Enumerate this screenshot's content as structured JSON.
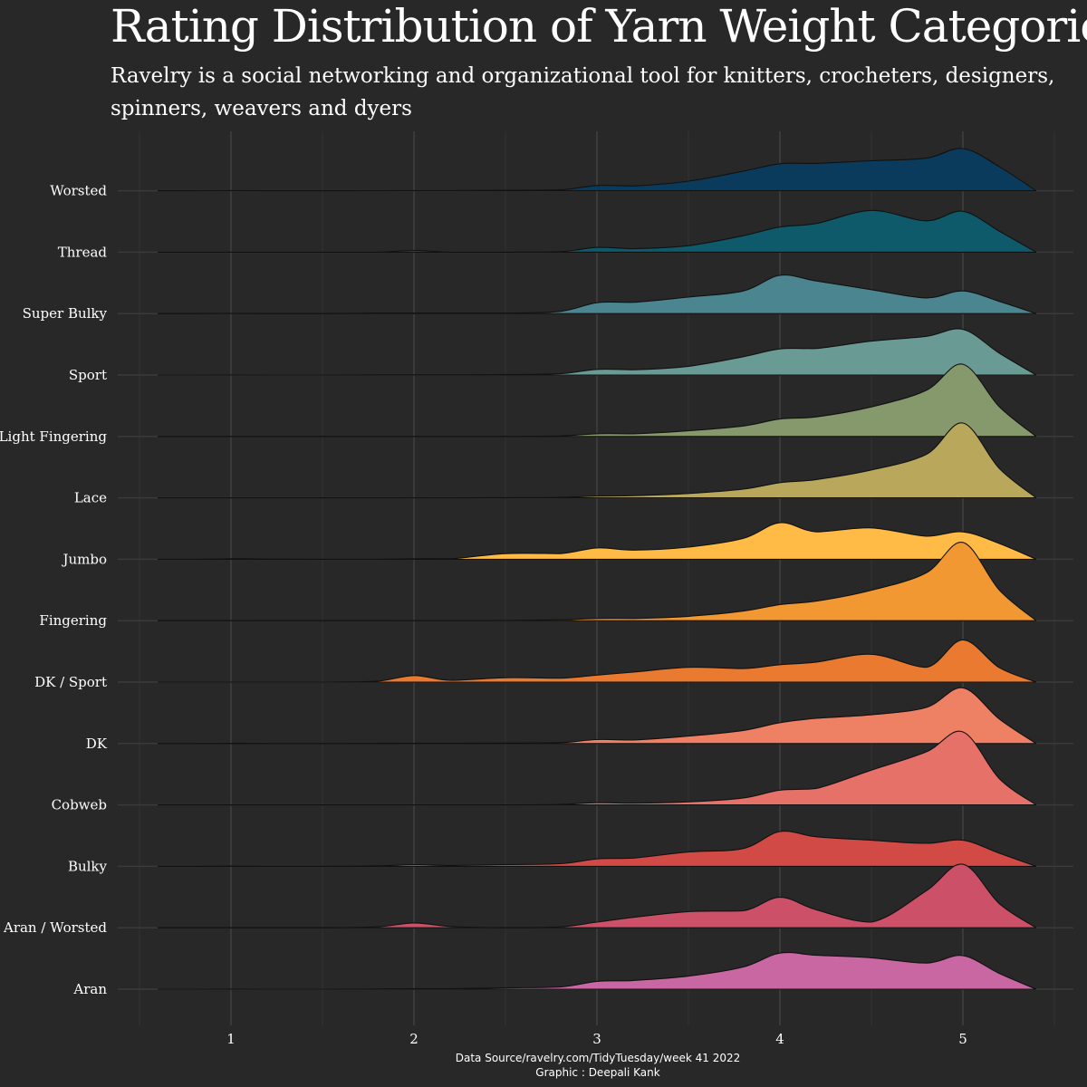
{
  "title": "Rating Distribution of Yarn Weight Categories",
  "subtitle": "Ravelry is a social networking and organizational tool for knitters, crocheters, designers,\n spinners, weavers and dyers",
  "caption": {
    "source": "Data Source/ravelry.com/TidyTuesday/week 41 2022",
    "credit": "Graphic : Deepali Kank"
  },
  "chart_data": {
    "type": "area",
    "subtype": "ridgeline",
    "x_ticks": [
      1,
      2,
      3,
      4,
      5
    ],
    "xlim": [
      0.5,
      5.5
    ],
    "grid": true,
    "density_x": [
      0.6,
      0.8,
      1.0,
      1.2,
      1.5,
      1.8,
      2.0,
      2.2,
      2.5,
      2.8,
      3.0,
      3.2,
      3.5,
      3.8,
      4.0,
      4.2,
      4.5,
      4.8,
      5.0,
      5.2,
      5.4
    ],
    "series": [
      {
        "name": "Worsted",
        "color": "#0b3b5c",
        "values": [
          0,
          0,
          0.004,
          0,
          0,
          0.002,
          0.004,
          0.005,
          0.01,
          0.02,
          0.12,
          0.11,
          0.22,
          0.45,
          0.62,
          0.63,
          0.69,
          0.75,
          0.97,
          0.55,
          0
        ]
      },
      {
        "name": "Thread",
        "color": "#0e5a6a",
        "values": [
          0,
          0,
          0,
          0,
          0,
          0,
          0.04,
          0,
          0,
          0.01,
          0.11,
          0.08,
          0.15,
          0.38,
          0.58,
          0.66,
          0.96,
          0.72,
          0.94,
          0.48,
          0
        ]
      },
      {
        "name": "Super Bulky",
        "color": "#4a8590",
        "values": [
          0,
          0,
          0.005,
          0,
          0,
          0.01,
          0.01,
          0.01,
          0.01,
          0.05,
          0.25,
          0.26,
          0.38,
          0.52,
          0.88,
          0.75,
          0.55,
          0.36,
          0.52,
          0.28,
          0
        ]
      },
      {
        "name": "Sport",
        "color": "#6a9a94",
        "values": [
          0,
          0,
          0.002,
          0,
          0,
          0.005,
          0.005,
          0.005,
          0.01,
          0.03,
          0.13,
          0.12,
          0.2,
          0.42,
          0.6,
          0.61,
          0.78,
          0.89,
          1.05,
          0.5,
          0
        ]
      },
      {
        "name": "Light Fingering",
        "color": "#85996c",
        "values": [
          0,
          0,
          0,
          0,
          0,
          0,
          0,
          0,
          0,
          0.01,
          0.06,
          0.06,
          0.13,
          0.24,
          0.4,
          0.45,
          0.68,
          1.06,
          1.66,
          0.68,
          0
        ]
      },
      {
        "name": "Lace",
        "color": "#b9a85c",
        "values": [
          0,
          0,
          0,
          0,
          0,
          0,
          0.002,
          0,
          0.005,
          0.01,
          0.04,
          0.05,
          0.1,
          0.2,
          0.35,
          0.42,
          0.64,
          1.0,
          1.72,
          0.67,
          0
        ]
      },
      {
        "name": "Jumbo",
        "color": "#ffbb45",
        "values": [
          0,
          0,
          0.01,
          0.005,
          0,
          0,
          0.01,
          0.01,
          0.13,
          0.13,
          0.26,
          0.21,
          0.28,
          0.48,
          0.84,
          0.63,
          0.72,
          0.53,
          0.63,
          0.36,
          0
        ]
      },
      {
        "name": "Fingering",
        "color": "#f29832",
        "values": [
          0,
          0,
          0.002,
          0,
          0,
          0,
          0.002,
          0.002,
          0.005,
          0.02,
          0.05,
          0.05,
          0.1,
          0.22,
          0.37,
          0.45,
          0.7,
          1.1,
          1.8,
          0.7,
          0
        ]
      },
      {
        "name": "DK / Sport",
        "color": "#ea7a30",
        "values": [
          0,
          0,
          0,
          0,
          0,
          0.02,
          0.15,
          0.04,
          0.1,
          0.09,
          0.16,
          0.23,
          0.34,
          0.31,
          0.4,
          0.46,
          0.64,
          0.34,
          0.97,
          0.33,
          0
        ]
      },
      {
        "name": "DK",
        "color": "#ee8063",
        "values": [
          0,
          0,
          0.002,
          0,
          0,
          0.003,
          0.005,
          0.005,
          0.01,
          0.02,
          0.09,
          0.08,
          0.17,
          0.3,
          0.48,
          0.58,
          0.66,
          0.83,
          1.28,
          0.56,
          0
        ]
      },
      {
        "name": "Cobweb",
        "color": "#e67168",
        "values": [
          0,
          0,
          0,
          0,
          0,
          0,
          0.002,
          0,
          0,
          0.01,
          0.05,
          0.04,
          0.07,
          0.16,
          0.34,
          0.38,
          0.8,
          1.22,
          1.68,
          0.6,
          0
        ]
      },
      {
        "name": "Bulky",
        "color": "#d14a45",
        "values": [
          0,
          0,
          0.005,
          0,
          0,
          0.01,
          0.04,
          0.02,
          0.04,
          0.06,
          0.17,
          0.19,
          0.33,
          0.41,
          0.8,
          0.68,
          0.6,
          0.53,
          0.6,
          0.3,
          0
        ]
      },
      {
        "name": "Aran / Worsted",
        "color": "#cc5068",
        "values": [
          0,
          0,
          0,
          0,
          0,
          0.02,
          0.11,
          0.03,
          0,
          0.02,
          0.13,
          0.24,
          0.37,
          0.39,
          0.7,
          0.41,
          0.13,
          0.85,
          1.46,
          0.55,
          0
        ]
      },
      {
        "name": "Aran",
        "color": "#c967a2",
        "values": [
          0,
          0,
          0.003,
          0,
          0,
          0.005,
          0.01,
          0.01,
          0.03,
          0.05,
          0.18,
          0.2,
          0.3,
          0.51,
          0.83,
          0.78,
          0.72,
          0.6,
          0.77,
          0.36,
          0
        ]
      }
    ]
  }
}
